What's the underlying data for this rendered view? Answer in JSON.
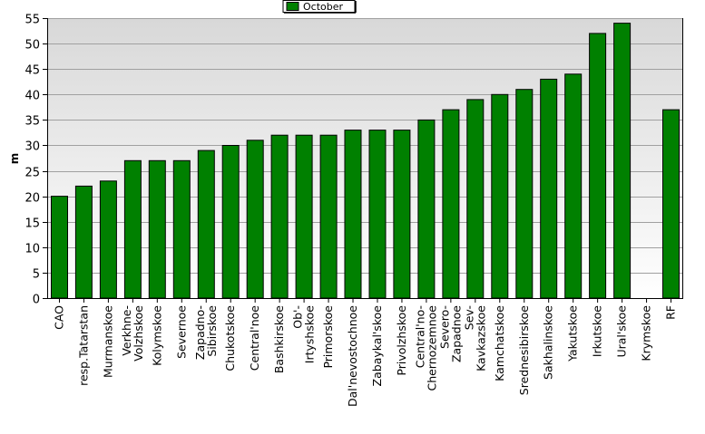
{
  "chart_data": {
    "type": "bar",
    "categories": [
      "CAO",
      "resp.Tatarstan",
      "Murmanskoe",
      "Verkhne-Volzhskoe",
      "Kolymskoe",
      "Severnoe",
      "Zapadno-Sibirskoe",
      "Chukotskoe",
      "Central'noe",
      "Bashkirskoe",
      "Ob'-Irtyshskoe",
      "Primorskoe",
      "Dal'nevostochnoe",
      "Zabaykal'skoe",
      "Privolzhskoe",
      "Central'no-Chernozemnoe",
      "Severo-Zapadnoe",
      "Sev-Kavkazskoe",
      "Kamchatskoe",
      "Srednesibirskoe",
      "Sakhalinskoe",
      "Yakutskoe",
      "Irkutskoe",
      "Ural'skoe",
      "Krymskoe",
      "RF"
    ],
    "category_lines": [
      [
        "CAO"
      ],
      [
        "resp.Tatarstan"
      ],
      [
        "Murmanskoe"
      ],
      [
        "Verkhne-",
        "Volzhskoe"
      ],
      [
        "Kolymskoe"
      ],
      [
        "Severnoe"
      ],
      [
        "Zapadno-",
        "Sibirskoe"
      ],
      [
        "Chukotskoe"
      ],
      [
        "Central'noe"
      ],
      [
        "Bashkirskoe"
      ],
      [
        "Ob'-",
        "Irtyshskoe"
      ],
      [
        "Primorskoe"
      ],
      [
        "Dal'nevostochnoe"
      ],
      [
        "Zabaykal'skoe"
      ],
      [
        "Privolzhskoe"
      ],
      [
        "Central'no-",
        "Chernozemnoe"
      ],
      [
        "Severo-",
        "Zapadnoe"
      ],
      [
        "Sev-",
        "Kavkazskoe"
      ],
      [
        "Kamchatskoe"
      ],
      [
        "Srednesibirskoe"
      ],
      [
        "Sakhalinskoe"
      ],
      [
        "Yakutskoe"
      ],
      [
        "Irkutskoe"
      ],
      [
        "Ural'skoe"
      ],
      [
        "Krymskoe"
      ],
      [
        "RF"
      ]
    ],
    "series": [
      {
        "name": "October",
        "values": [
          20,
          22,
          23,
          27,
          27,
          27,
          29,
          30,
          31,
          32,
          32,
          32,
          33,
          33,
          33,
          35,
          37,
          39,
          40,
          41,
          43,
          44,
          52,
          54,
          0,
          37
        ]
      }
    ],
    "ylabel": "m",
    "xlabel": "",
    "ylim": [
      0,
      55
    ],
    "yticks": [
      "0",
      "5",
      "10",
      "15",
      "20",
      "25",
      "30",
      "35",
      "40",
      "45",
      "50",
      "55"
    ],
    "grid": true,
    "legend_position": "top-center",
    "colors": {
      "bar": "#008000",
      "bar_edge": "#000000",
      "plot_bg_top": "#d8d8d8",
      "plot_bg_bottom": "#ffffff",
      "grid": "#a0a0a0"
    }
  }
}
